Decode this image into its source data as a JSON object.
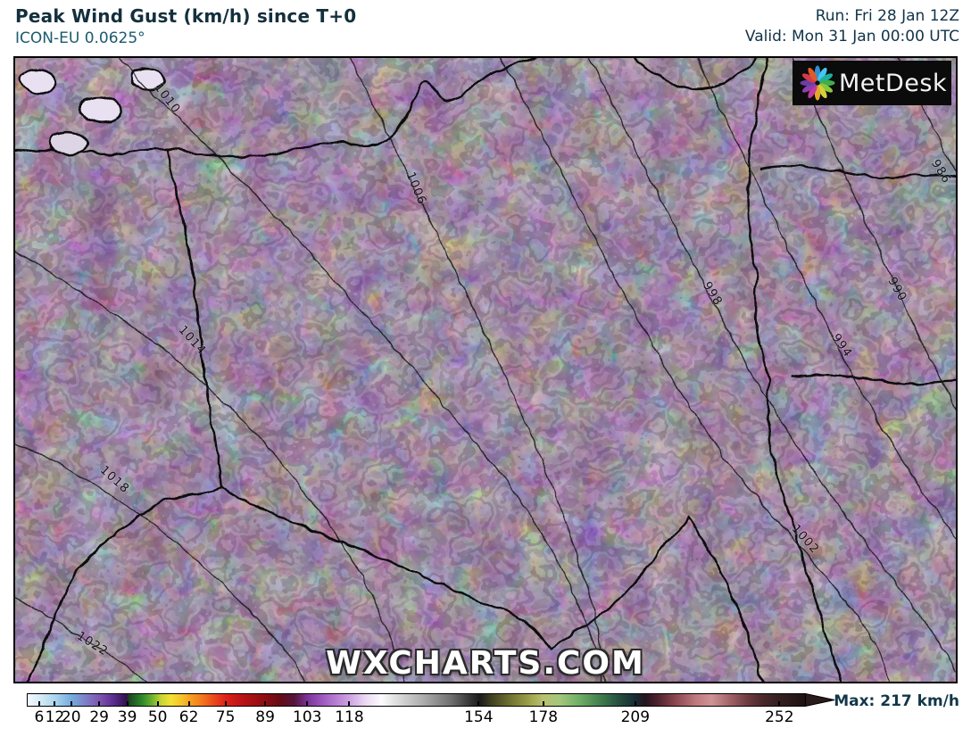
{
  "header": {
    "title": "Peak Wind Gust (km/h) since T+0",
    "subtitle": "ICON-EU 0.0625°",
    "run_label": "Run: Fri 28 Jan 12Z",
    "valid_label": "Valid: Mon 31 Jan 00:00 UTC",
    "text_color": "#142f3d"
  },
  "map": {
    "watermark": "WXCHARTS.COM",
    "logo": {
      "text": "MetDesk",
      "bg": "#0b0b0b",
      "petal_colors": [
        "#2f8fd4",
        "#45c6f0",
        "#1fae9e",
        "#3fae4c",
        "#8cc63f",
        "#d4d13a",
        "#e3a92c",
        "#c13a9e",
        "#8c3fae",
        "#6a3fa0",
        "#d43a4c",
        "#e05a2a"
      ]
    },
    "isobar_labels": [
      "1010",
      "1006",
      "1014",
      "1018",
      "1022",
      "998",
      "994",
      "990",
      "986",
      "1002"
    ],
    "palette": {
      "sea_gray": "#cfcfcf",
      "coastal_white": "#f7f0fa",
      "magenta_band": "#c957cc",
      "purple_core": "#9b58bc",
      "maroon": "#76333e",
      "east_red": "#cc3a20",
      "orange": "#ee7c1e",
      "mountain_violet": "#a04ec4"
    }
  },
  "legend": {
    "ticks": [
      {
        "value": "6",
        "pos": 1.6
      },
      {
        "value": "12",
        "pos": 3.6
      },
      {
        "value": "20",
        "pos": 5.7
      },
      {
        "value": "29",
        "pos": 9.3
      },
      {
        "value": "39",
        "pos": 12.9
      },
      {
        "value": "50",
        "pos": 16.8
      },
      {
        "value": "62",
        "pos": 20.8
      },
      {
        "value": "75",
        "pos": 25.5
      },
      {
        "value": "89",
        "pos": 30.6
      },
      {
        "value": "103",
        "pos": 36.0
      },
      {
        "value": "118",
        "pos": 41.4
      },
      {
        "value": "154",
        "pos": 58.0
      },
      {
        "value": "178",
        "pos": 66.3
      },
      {
        "value": "209",
        "pos": 78.1
      },
      {
        "value": "252",
        "pos": 96.6
      }
    ],
    "max_label": "Max: 217 km/h",
    "gradient": [
      {
        "p": 0,
        "c": "#f2fafd"
      },
      {
        "p": 1.6,
        "c": "#d6ecf8"
      },
      {
        "p": 3.6,
        "c": "#a9d4ee"
      },
      {
        "p": 5.7,
        "c": "#74aadd"
      },
      {
        "p": 7.3,
        "c": "#7e83c8"
      },
      {
        "p": 9.3,
        "c": "#7d54b0"
      },
      {
        "p": 11.0,
        "c": "#5c2d90"
      },
      {
        "p": 12.7,
        "c": "#31124e"
      },
      {
        "p": 13.1,
        "c": "#1c4a20"
      },
      {
        "p": 14.8,
        "c": "#2f8a2d"
      },
      {
        "p": 16.2,
        "c": "#7ab832"
      },
      {
        "p": 17.2,
        "c": "#c8d534"
      },
      {
        "p": 18.4,
        "c": "#f2e135"
      },
      {
        "p": 20.0,
        "c": "#f6bd28"
      },
      {
        "p": 20.8,
        "c": "#f6a21f"
      },
      {
        "p": 22.5,
        "c": "#f3751d"
      },
      {
        "p": 24.2,
        "c": "#e9431c"
      },
      {
        "p": 25.5,
        "c": "#dd2119"
      },
      {
        "p": 27.8,
        "c": "#b61216"
      },
      {
        "p": 30.6,
        "c": "#8c0d12"
      },
      {
        "p": 32.5,
        "c": "#650b14"
      },
      {
        "p": 34.3,
        "c": "#54163c"
      },
      {
        "p": 36.0,
        "c": "#7c3398"
      },
      {
        "p": 38.5,
        "c": "#a666c8"
      },
      {
        "p": 41.4,
        "c": "#cfa3e2"
      },
      {
        "p": 43.5,
        "c": "#ecdaf3"
      },
      {
        "p": 45.5,
        "c": "#fdfbfe"
      },
      {
        "p": 47.5,
        "c": "#dddddd"
      },
      {
        "p": 51,
        "c": "#ababab"
      },
      {
        "p": 54.5,
        "c": "#6f6f6f"
      },
      {
        "p": 57,
        "c": "#333333"
      },
      {
        "p": 58.2,
        "c": "#1b1b1b"
      },
      {
        "p": 59.5,
        "c": "#3d3d1f"
      },
      {
        "p": 62,
        "c": "#6f7030"
      },
      {
        "p": 64.5,
        "c": "#9da04a"
      },
      {
        "p": 66.3,
        "c": "#b9c070"
      },
      {
        "p": 68.5,
        "c": "#a3c77c"
      },
      {
        "p": 71,
        "c": "#6fae66"
      },
      {
        "p": 73.5,
        "c": "#44804f"
      },
      {
        "p": 76,
        "c": "#26503f"
      },
      {
        "p": 78.1,
        "c": "#162c34"
      },
      {
        "p": 79.5,
        "c": "#27151f"
      },
      {
        "p": 81,
        "c": "#4c222c"
      },
      {
        "p": 83.5,
        "c": "#8e4a52"
      },
      {
        "p": 86,
        "c": "#c07a80"
      },
      {
        "p": 88,
        "c": "#cf9396"
      },
      {
        "p": 90,
        "c": "#a86a6e"
      },
      {
        "p": 92.5,
        "c": "#6f3d41"
      },
      {
        "p": 94.5,
        "c": "#4a2a2c"
      },
      {
        "p": 96.6,
        "c": "#35201f"
      },
      {
        "p": 100,
        "c": "#1f1212"
      }
    ]
  }
}
